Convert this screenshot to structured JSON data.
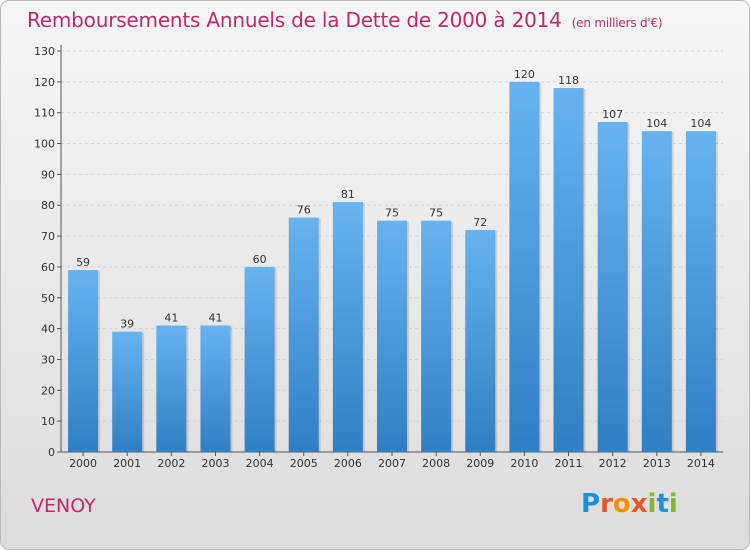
{
  "title": "Remboursements Annuels de la Dette de 2000 à 2014",
  "unit": "(en milliers d'€)",
  "commune": "VENOY",
  "brand": "Proxiti",
  "brand_colors": [
    "#1f8fd8",
    "#e2572b",
    "#f39200",
    "#e2572b",
    "#7fb83a",
    "#1f8fd8",
    "#7fb83a"
  ],
  "colors": {
    "bar": "#4a9fe0",
    "bar_light": "#66b3ef",
    "bar_dark": "#2f7fc4",
    "title": "#c0286a"
  },
  "chart_data": {
    "type": "bar",
    "categories": [
      "2000",
      "2001",
      "2002",
      "2003",
      "2004",
      "2005",
      "2006",
      "2007",
      "2008",
      "2009",
      "2010",
      "2011",
      "2012",
      "2013",
      "2014"
    ],
    "values": [
      59,
      39,
      41,
      41,
      60,
      76,
      81,
      75,
      75,
      72,
      120,
      118,
      107,
      104,
      104
    ],
    "ylim": [
      0,
      130
    ],
    "yticks": [
      0,
      10,
      20,
      30,
      40,
      50,
      60,
      70,
      80,
      90,
      100,
      110,
      120,
      130
    ],
    "grid": true,
    "xlabel": "",
    "ylabel": ""
  }
}
